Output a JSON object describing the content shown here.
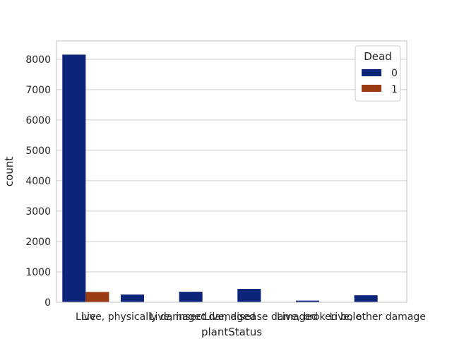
{
  "chart_data": {
    "type": "bar",
    "xlabel": "plantStatus",
    "ylabel": "count",
    "categories": [
      "Live",
      "Live, physically damaged",
      "Live, insect damaged",
      "Live, disease damaged",
      "Live, broken bole",
      "Live, other damage"
    ],
    "legend_title": "Dead",
    "legend_position": "top-right",
    "series": [
      {
        "name": "0",
        "color": "#0c2479",
        "values": [
          8150,
          255,
          345,
          440,
          55,
          230
        ]
      },
      {
        "name": "1",
        "color": "#9b3b14",
        "values": [
          340,
          5,
          5,
          5,
          0,
          5
        ]
      }
    ],
    "ylim": [
      0,
      8600
    ],
    "yticks": [
      0,
      1000,
      2000,
      3000,
      4000,
      5000,
      6000,
      7000,
      8000
    ],
    "grid": true
  }
}
